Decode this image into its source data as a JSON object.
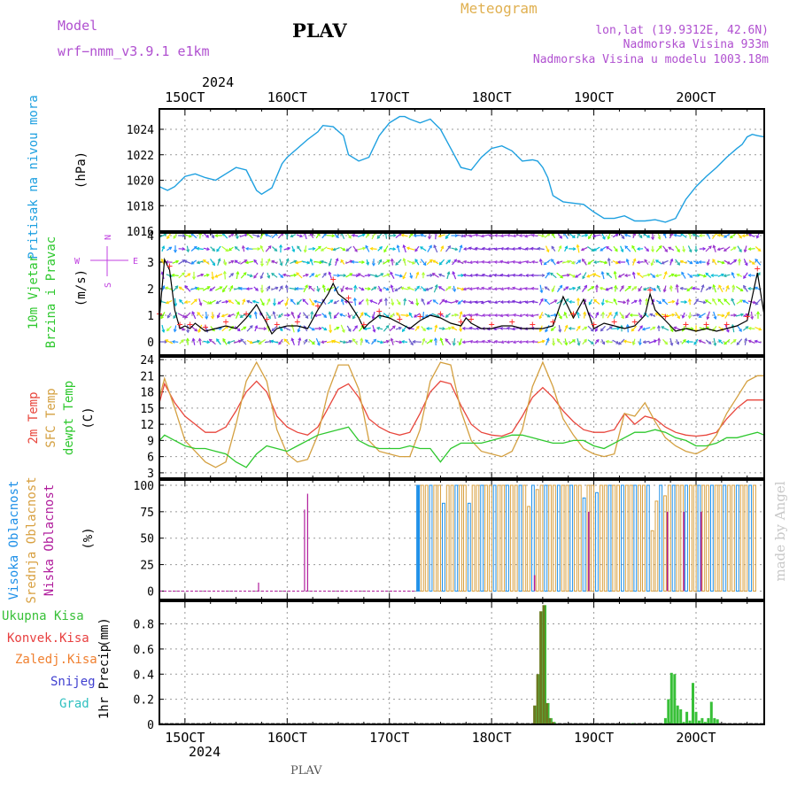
{
  "header": {
    "model_label": "Model",
    "model_name": "wrf−nmm_v3.9.1  e1km",
    "station": "PLAV",
    "product": "Meteogram",
    "coords": "lon,lat (19.9312E, 42.6N)",
    "elevation": "Nadmorska Visina 933m",
    "model_elevation": "Nadmorska Visina u modelu 1003.18m",
    "footer_station": "PLAV",
    "watermark": "made by Angel"
  },
  "colors": {
    "pressure": "#1ea0e0",
    "wind_speed": "#000000",
    "t2m": "#e8463c",
    "sfc_temp": "#d4a040",
    "dewpoint": "#2ec82e",
    "high_cloud": "#1e90e8",
    "mid_cloud": "#d8a040",
    "low_cloud": "#b01c9c",
    "total_precip": "#38c038",
    "conv_precip": "#e84040",
    "grid_precip": "#f08030",
    "snow": "#4040d0",
    "hail": "#30c0c0",
    "axis_title_purple": "#c040e0",
    "header_purple": "#b050d0",
    "meteogram_gold": "#e0b050"
  },
  "axes": {
    "top_year": "2024",
    "bottom_year": "2024",
    "day_labels": [
      "15OCT",
      "16OCT",
      "17OCT",
      "18OCT",
      "19OCT",
      "20OCT"
    ],
    "day_positions": [
      15,
      16,
      17,
      18,
      19,
      20
    ],
    "x_range": [
      14.75,
      20.667
    ]
  },
  "chart_data": [
    {
      "type": "line",
      "name": "pressure",
      "ylabel_lines": [
        "Pritisak na nivou mora"
      ],
      "unit": "(hPa)",
      "ylim": [
        1016,
        1025.6
      ],
      "yticks": [
        1016,
        1018,
        1020,
        1022,
        1024
      ],
      "x": [
        14.75,
        14.83,
        14.9,
        15.0,
        15.1,
        15.2,
        15.3,
        15.4,
        15.5,
        15.6,
        15.7,
        15.75,
        15.85,
        15.95,
        16.0,
        16.1,
        16.2,
        16.3,
        16.35,
        16.45,
        16.55,
        16.6,
        16.7,
        16.8,
        16.9,
        17.0,
        17.1,
        17.15,
        17.2,
        17.3,
        17.4,
        17.5,
        17.6,
        17.7,
        17.8,
        17.9,
        18.0,
        18.1,
        18.2,
        18.3,
        18.4,
        18.45,
        18.5,
        18.55,
        18.6,
        18.7,
        18.8,
        18.9,
        19.0,
        19.1,
        19.2,
        19.3,
        19.4,
        19.5,
        19.6,
        19.7,
        19.8,
        19.9,
        20.0,
        20.1,
        20.2,
        20.3,
        20.4,
        20.45,
        20.5,
        20.55,
        20.6,
        20.667
      ],
      "y": [
        1019.5,
        1019.2,
        1019.5,
        1020.3,
        1020.5,
        1020.2,
        1020.0,
        1020.5,
        1021.0,
        1020.8,
        1019.2,
        1018.9,
        1019.4,
        1021.3,
        1021.8,
        1022.5,
        1023.2,
        1023.8,
        1024.3,
        1024.2,
        1023.5,
        1022.0,
        1021.5,
        1021.8,
        1023.5,
        1024.5,
        1025.0,
        1025.0,
        1024.8,
        1024.5,
        1024.8,
        1024.0,
        1022.5,
        1021.0,
        1020.8,
        1021.8,
        1022.5,
        1022.7,
        1022.3,
        1021.5,
        1021.6,
        1021.5,
        1021.0,
        1020.2,
        1018.8,
        1018.3,
        1018.2,
        1018.1,
        1017.5,
        1017.0,
        1017.0,
        1017.2,
        1016.8,
        1016.8,
        1016.9,
        1016.7,
        1017.0,
        1018.5,
        1019.5,
        1020.3,
        1021.0,
        1021.8,
        1022.5,
        1022.8,
        1023.4,
        1023.6,
        1023.5,
        1023.4
      ]
    },
    {
      "type": "line",
      "name": "wind",
      "ylabel_lines": [
        "10m Vjetar",
        "Brzina i Pravac"
      ],
      "unit": "(m/s)",
      "compass": [
        "N",
        "E",
        "S",
        "W"
      ],
      "ylim": [
        -0.5,
        4.1
      ],
      "yticks": [
        0,
        1,
        2,
        3,
        4
      ],
      "x": [
        14.75,
        14.8,
        14.85,
        14.9,
        14.95,
        15.0,
        15.05,
        15.1,
        15.2,
        15.3,
        15.4,
        15.5,
        15.6,
        15.7,
        15.8,
        15.85,
        15.9,
        16.0,
        16.1,
        16.2,
        16.3,
        16.4,
        16.45,
        16.5,
        16.6,
        16.7,
        16.75,
        16.8,
        16.9,
        17.0,
        17.1,
        17.2,
        17.3,
        17.4,
        17.5,
        17.6,
        17.7,
        17.75,
        17.8,
        17.9,
        18.0,
        18.1,
        18.2,
        18.3,
        18.4,
        18.5,
        18.6,
        18.7,
        18.8,
        18.9,
        19.0,
        19.1,
        19.2,
        19.3,
        19.4,
        19.5,
        19.55,
        19.6,
        19.7,
        19.8,
        19.9,
        20.0,
        20.1,
        20.2,
        20.3,
        20.4,
        20.5,
        20.55,
        20.6,
        20.667
      ],
      "y": [
        0.9,
        3.1,
        2.7,
        1.2,
        0.5,
        0.6,
        0.5,
        0.7,
        0.4,
        0.5,
        0.6,
        0.5,
        0.9,
        1.4,
        0.7,
        0.3,
        0.5,
        0.6,
        0.6,
        0.5,
        1.2,
        1.8,
        2.2,
        1.8,
        1.5,
        0.9,
        0.5,
        0.7,
        1.0,
        0.9,
        0.7,
        0.5,
        0.8,
        1.0,
        0.9,
        0.7,
        0.6,
        0.9,
        0.7,
        0.5,
        0.5,
        0.6,
        0.6,
        0.5,
        0.5,
        0.5,
        0.6,
        1.7,
        0.9,
        1.6,
        0.5,
        0.7,
        0.6,
        0.5,
        0.6,
        1.0,
        1.8,
        1.2,
        0.8,
        0.4,
        0.5,
        0.4,
        0.5,
        0.4,
        0.5,
        0.6,
        0.8,
        1.7,
        2.6,
        1.0
      ]
    },
    {
      "type": "line",
      "name": "temperature",
      "ylabel_lines": [
        "2m Temp",
        "SFC Temp",
        "dewpt Temp"
      ],
      "unit": "(C)",
      "ylim": [
        2,
        24.5
      ],
      "yticks": [
        3,
        6,
        9,
        12,
        15,
        18,
        21,
        24
      ],
      "x": [
        14.75,
        14.8,
        14.9,
        15.0,
        15.1,
        15.2,
        15.3,
        15.4,
        15.5,
        15.6,
        15.7,
        15.8,
        15.9,
        16.0,
        16.1,
        16.2,
        16.3,
        16.4,
        16.5,
        16.6,
        16.7,
        16.8,
        16.9,
        17.0,
        17.1,
        17.2,
        17.3,
        17.4,
        17.5,
        17.6,
        17.7,
        17.8,
        17.9,
        18.0,
        18.1,
        18.2,
        18.3,
        18.4,
        18.5,
        18.6,
        18.7,
        18.8,
        18.9,
        19.0,
        19.1,
        19.2,
        19.3,
        19.4,
        19.5,
        19.6,
        19.7,
        19.8,
        19.9,
        20.0,
        20.1,
        20.2,
        20.3,
        20.4,
        20.5,
        20.6,
        20.667
      ],
      "series": [
        {
          "name": "2m Temp",
          "values": [
            16.0,
            19.5,
            16.0,
            13.5,
            12.0,
            10.5,
            10.5,
            11.5,
            14.5,
            18.0,
            20.0,
            18.0,
            13.5,
            11.5,
            10.5,
            10.0,
            11.5,
            15.0,
            18.5,
            19.5,
            17.0,
            13.0,
            11.5,
            10.5,
            10.0,
            10.5,
            14.0,
            18.0,
            20.0,
            19.5,
            15.5,
            12.0,
            10.5,
            10.0,
            9.8,
            10.5,
            13.5,
            17.0,
            18.8,
            17.0,
            14.5,
            12.5,
            11.0,
            10.5,
            10.5,
            11.0,
            14.0,
            12.0,
            13.5,
            13.0,
            11.5,
            10.5,
            10.0,
            9.8,
            10.0,
            10.5,
            13.0,
            15.0,
            16.5,
            16.5,
            16.5
          ]
        },
        {
          "name": "SFC Temp",
          "values": [
            17.0,
            20.5,
            15.0,
            9.0,
            7.0,
            5.0,
            4.0,
            5.0,
            12.0,
            20.0,
            23.5,
            20.0,
            11.0,
            6.5,
            5.0,
            5.5,
            10.0,
            18.0,
            23.0,
            23.0,
            18.5,
            9.0,
            7.0,
            6.5,
            6.0,
            6.0,
            11.0,
            20.0,
            23.5,
            23.0,
            14.5,
            9.0,
            7.0,
            6.5,
            6.0,
            7.0,
            11.0,
            19.0,
            23.5,
            19.0,
            13.0,
            10.0,
            7.5,
            6.5,
            6.0,
            6.5,
            14.0,
            13.5,
            16.0,
            12.5,
            9.5,
            8.0,
            7.0,
            6.5,
            7.5,
            10.0,
            14.0,
            17.0,
            20.0,
            21.0,
            21.0
          ]
        },
        {
          "name": "dewpt Temp",
          "values": [
            9.0,
            10.0,
            9.0,
            8.0,
            7.5,
            7.5,
            7.0,
            6.5,
            5.0,
            4.0,
            6.5,
            8.0,
            7.5,
            7.0,
            8.0,
            9.0,
            10.0,
            10.5,
            11.0,
            11.5,
            9.0,
            8.0,
            7.5,
            7.5,
            7.5,
            8.0,
            7.5,
            7.5,
            5.0,
            7.5,
            8.5,
            8.5,
            8.5,
            9.0,
            9.5,
            10.0,
            10.0,
            9.5,
            9.0,
            8.5,
            8.5,
            9.0,
            9.0,
            8.0,
            7.5,
            8.5,
            9.5,
            10.5,
            10.5,
            11.0,
            10.5,
            9.5,
            9.0,
            8.0,
            8.0,
            8.5,
            9.5,
            9.5,
            10.0,
            10.5,
            10.0
          ]
        }
      ]
    },
    {
      "type": "bar",
      "name": "clouds",
      "ylabel_lines": [
        "Visoka Oblacnost",
        "Srednja Oblacnost",
        "Niska Oblacnost"
      ],
      "unit": "(%)",
      "ylim": [
        -8,
        105
      ],
      "yticks": [
        0,
        25,
        50,
        75,
        100
      ],
      "overcast_start": 17.28,
      "overcast_end": 20.6,
      "spikes_low": [
        {
          "x": 15.72,
          "value": 8
        },
        {
          "x": 16.17,
          "value": 77
        },
        {
          "x": 16.2,
          "value": 92
        }
      ],
      "drops_high": [
        {
          "x": 17.55,
          "value": 83
        },
        {
          "x": 17.8,
          "value": 83
        },
        {
          "x": 18.35,
          "value": 80
        },
        {
          "x": 18.45,
          "value": 96
        },
        {
          "x": 18.92,
          "value": 88
        },
        {
          "x": 19.02,
          "value": 93
        },
        {
          "x": 19.58,
          "value": 57
        },
        {
          "x": 19.62,
          "value": 85
        },
        {
          "x": 19.7,
          "value": 90
        }
      ]
    },
    {
      "type": "bar",
      "name": "precip",
      "ylabel_lines": [
        "1hr Precip"
      ],
      "unit": "(mm)",
      "legend": [
        "Ukupna Kisa",
        "Konvek.Kisa",
        "Zaledj.Kisa",
        "Snijeg",
        "Grad"
      ],
      "ylim": [
        0,
        0.98
      ],
      "yticks": [
        0,
        0.2,
        0.4,
        0.6,
        0.8
      ],
      "x": [
        18.42,
        18.45,
        18.48,
        18.51,
        18.54,
        18.57,
        18.6,
        19.38,
        19.7,
        19.73,
        19.76,
        19.79,
        19.82,
        19.85,
        19.88,
        19.91,
        19.94,
        19.97,
        20.0,
        20.03,
        20.06,
        20.09,
        20.12,
        20.15,
        20.18,
        20.21
      ],
      "values": [
        0.15,
        0.4,
        0.9,
        0.95,
        0.17,
        0.05,
        0.02,
        0.01,
        0.05,
        0.2,
        0.41,
        0.4,
        0.15,
        0.12,
        0.02,
        0.1,
        0.03,
        0.33,
        0.1,
        0.03,
        0.05,
        0.02,
        0.05,
        0.18,
        0.05,
        0.04
      ]
    }
  ]
}
